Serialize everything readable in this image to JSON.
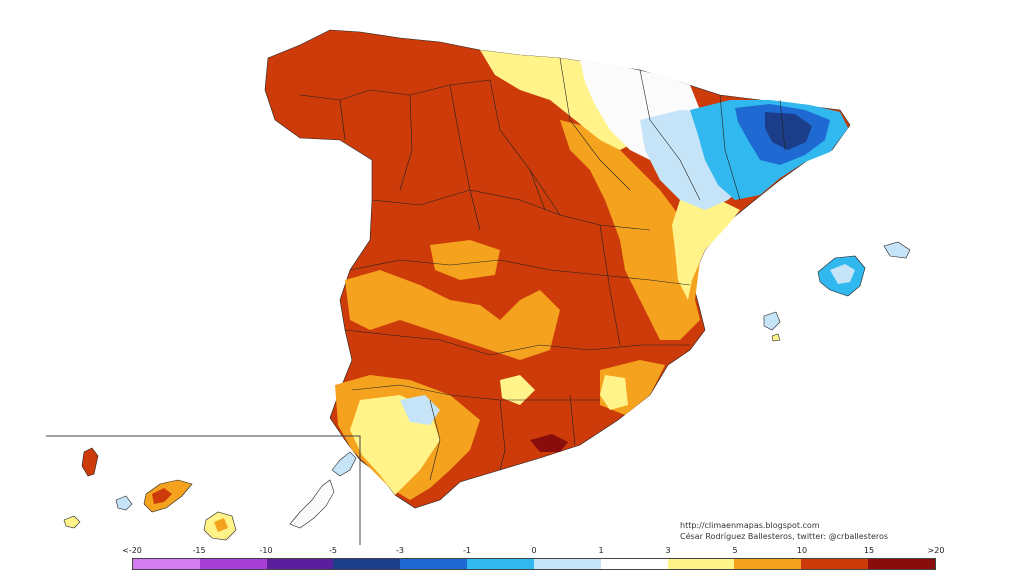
{
  "credits": {
    "url": "http://climaenmapas.blogspot.com",
    "author": "César Rodríguez Ballesteros, twitter: @crballesteros"
  },
  "legend": {
    "labels": [
      "<-20",
      "-15",
      "-10",
      "-5",
      "-3",
      "-1",
      "0",
      "1",
      "3",
      "5",
      "10",
      "15",
      ">20"
    ],
    "colors": [
      "#d27cf2",
      "#a53fd6",
      "#5b1f9e",
      "#1b3d8a",
      "#1e6ad2",
      "#31b8ee",
      "#c6e4f7",
      "#ffffff",
      "#fff38a",
      "#f5a21e",
      "#cc3b09",
      "#8a0d0d",
      "#6e3b0a"
    ]
  },
  "map_colors": {
    "deep_red": "#cc3b09",
    "orange": "#f5a21e",
    "yellow": "#fff38a",
    "white": "#fbfbfb",
    "light_blue": "#c6e4f7",
    "cyan": "#31b8ee",
    "blue": "#1e6ad2",
    "dark_blue": "#1b3d8a",
    "dark_red": "#8a0d0d"
  }
}
